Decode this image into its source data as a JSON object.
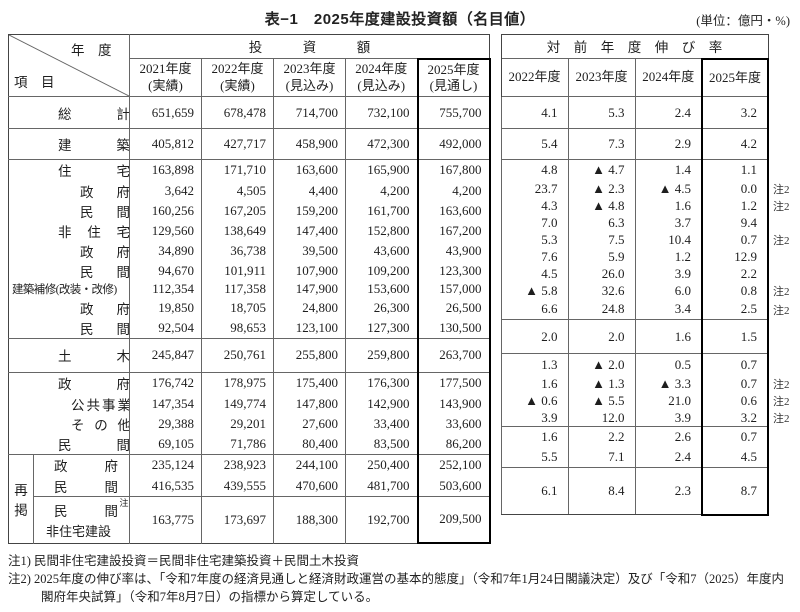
{
  "title": "表−1　2025年度建設投資額（名目値）",
  "unit_label": "(単位：億円・%)",
  "regroup_label": "再掲",
  "header": {
    "corner_top": "年　度",
    "corner_bottom": "項　目",
    "invest_group": "投　　　資　　　額",
    "growth_group": "対　前　年　度　伸　び　率",
    "invest_cols": [
      {
        "year": "2021年度",
        "status": "(実績)"
      },
      {
        "year": "2022年度",
        "status": "(実績)"
      },
      {
        "year": "2023年度",
        "status": "(見込み)"
      },
      {
        "year": "2024年度",
        "status": "(見込み)"
      },
      {
        "year": "2025年度",
        "status": "(見通し)"
      }
    ],
    "growth_cols": [
      "2022年度",
      "2023年度",
      "2024年度",
      "2025年度"
    ]
  },
  "rows": [
    {
      "label": "総計",
      "values": [
        "651,659",
        "678,478",
        "714,700",
        "732,100",
        "755,700"
      ],
      "rates": [
        "4.1",
        "5.3",
        "2.4",
        "3.2"
      ],
      "note": ""
    },
    {
      "label": "建築",
      "values": [
        "405,812",
        "427,717",
        "458,900",
        "472,300",
        "492,000"
      ],
      "rates": [
        "5.4",
        "7.3",
        "2.9",
        "4.2"
      ],
      "note": ""
    },
    {
      "label": "住宅",
      "values": [
        "163,898",
        "171,710",
        "163,600",
        "165,900",
        "167,800"
      ],
      "rates": [
        "4.8",
        "▲ 4.7",
        "1.4",
        "1.1"
      ],
      "note": ""
    },
    {
      "label": "政府",
      "values": [
        "3,642",
        "4,505",
        "4,400",
        "4,200",
        "4,200"
      ],
      "rates": [
        "23.7",
        "▲ 2.3",
        "▲ 4.5",
        "0.0"
      ],
      "note": "注2"
    },
    {
      "label": "民間",
      "values": [
        "160,256",
        "167,205",
        "159,200",
        "161,700",
        "163,600"
      ],
      "rates": [
        "4.3",
        "▲ 4.8",
        "1.6",
        "1.2"
      ],
      "note": "注2"
    },
    {
      "label": "非住宅",
      "values": [
        "129,560",
        "138,649",
        "147,400",
        "152,800",
        "167,200"
      ],
      "rates": [
        "7.0",
        "6.3",
        "3.7",
        "9.4"
      ],
      "note": ""
    },
    {
      "label": "政府",
      "values": [
        "34,890",
        "36,738",
        "39,500",
        "43,600",
        "43,900"
      ],
      "rates": [
        "5.3",
        "7.5",
        "10.4",
        "0.7"
      ],
      "note": "注2"
    },
    {
      "label": "民間",
      "values": [
        "94,670",
        "101,911",
        "107,900",
        "109,200",
        "123,300"
      ],
      "rates": [
        "7.6",
        "5.9",
        "1.2",
        "12.9"
      ],
      "note": ""
    },
    {
      "label": "建築補修(改装・改修)",
      "values": [
        "112,354",
        "117,358",
        "147,900",
        "153,600",
        "157,000"
      ],
      "rates": [
        "4.5",
        "26.0",
        "3.9",
        "2.2"
      ],
      "note": ""
    },
    {
      "label": "政府",
      "values": [
        "19,850",
        "18,705",
        "24,800",
        "26,300",
        "26,500"
      ],
      "rates": [
        "▲ 5.8",
        "32.6",
        "6.0",
        "0.8"
      ],
      "note": "注2"
    },
    {
      "label": "民間",
      "values": [
        "92,504",
        "98,653",
        "123,100",
        "127,300",
        "130,500"
      ],
      "rates": [
        "6.6",
        "24.8",
        "3.4",
        "2.5"
      ],
      "note": "注2"
    },
    {
      "label": "土木",
      "values": [
        "245,847",
        "250,761",
        "255,800",
        "259,800",
        "263,700"
      ],
      "rates": [
        "2.0",
        "2.0",
        "1.6",
        "1.5"
      ],
      "note": ""
    },
    {
      "label": "政府",
      "values": [
        "176,742",
        "178,975",
        "175,400",
        "176,300",
        "177,500"
      ],
      "rates": [
        "1.3",
        "▲ 2.0",
        "0.5",
        "0.7"
      ],
      "note": ""
    },
    {
      "label": "公共事業",
      "values": [
        "147,354",
        "149,774",
        "147,800",
        "142,900",
        "143,900"
      ],
      "rates": [
        "1.6",
        "▲ 1.3",
        "▲ 3.3",
        "0.7"
      ],
      "note": "注2"
    },
    {
      "label": "その他",
      "values": [
        "29,388",
        "29,201",
        "27,600",
        "33,400",
        "33,600"
      ],
      "rates": [
        "▲ 0.6",
        "▲ 5.5",
        "21.0",
        "0.6"
      ],
      "note": "注2"
    },
    {
      "label": "民間",
      "values": [
        "69,105",
        "71,786",
        "80,400",
        "83,500",
        "86,200"
      ],
      "rates": [
        "3.9",
        "12.0",
        "3.9",
        "3.2"
      ],
      "note": "注2"
    },
    {
      "label": "政府",
      "values": [
        "235,124",
        "238,923",
        "244,100",
        "250,400",
        "252,100"
      ],
      "rates": [
        "1.6",
        "2.2",
        "2.6",
        "0.7"
      ],
      "note": ""
    },
    {
      "label": "民間",
      "values": [
        "416,535",
        "439,555",
        "470,600",
        "481,700",
        "503,600"
      ],
      "rates": [
        "5.5",
        "7.1",
        "2.4",
        "4.5"
      ],
      "note": ""
    },
    {
      "label": "民間",
      "label_sup": "注1",
      "label2": "非住宅建設",
      "values": [
        "163,775",
        "173,697",
        "188,300",
        "192,700",
        "209,500"
      ],
      "rates": [
        "6.1",
        "8.4",
        "2.3",
        "8.7"
      ],
      "note": ""
    }
  ],
  "footnotes": [
    "注1) 民間非住宅建設投資＝民間非住宅建築投資＋民間土木投資",
    "注2) 2025年度の伸び率は、「令和7年度の経済見通しと経済財政運営の基本的態度」（令和7年1月24日閣議決定）及び「令和7（2025）年度内閣府年央試算」（令和7年8月7日）の指標から算定している。"
  ]
}
